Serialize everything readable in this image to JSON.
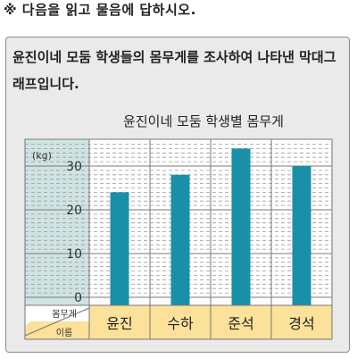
{
  "instruction": "※ 다음을 읽고 물음에 답하시오.",
  "problem_text": "윤진이네 모둠 학생들의 몸무게를 조사하여 나타낸 막대그래프입니다.",
  "colors": {
    "bar": "#1a8fa8",
    "axis_panel": "#cfe3e3",
    "label_row": "#fbe19a",
    "panel_bg": "#eaeaea"
  },
  "chart_data": {
    "type": "bar",
    "title": "윤진이네 모둠 학생별 몸무게",
    "unit": "(kg)",
    "categories": [
      "윤진",
      "수하",
      "준석",
      "경석"
    ],
    "values": [
      24,
      28,
      34,
      30
    ],
    "ylim": [
      0,
      35
    ],
    "yticks": [
      "0",
      "10",
      "20",
      "30"
    ],
    "ylabel": "몸무게",
    "xlabel": "이름",
    "grid": true
  }
}
